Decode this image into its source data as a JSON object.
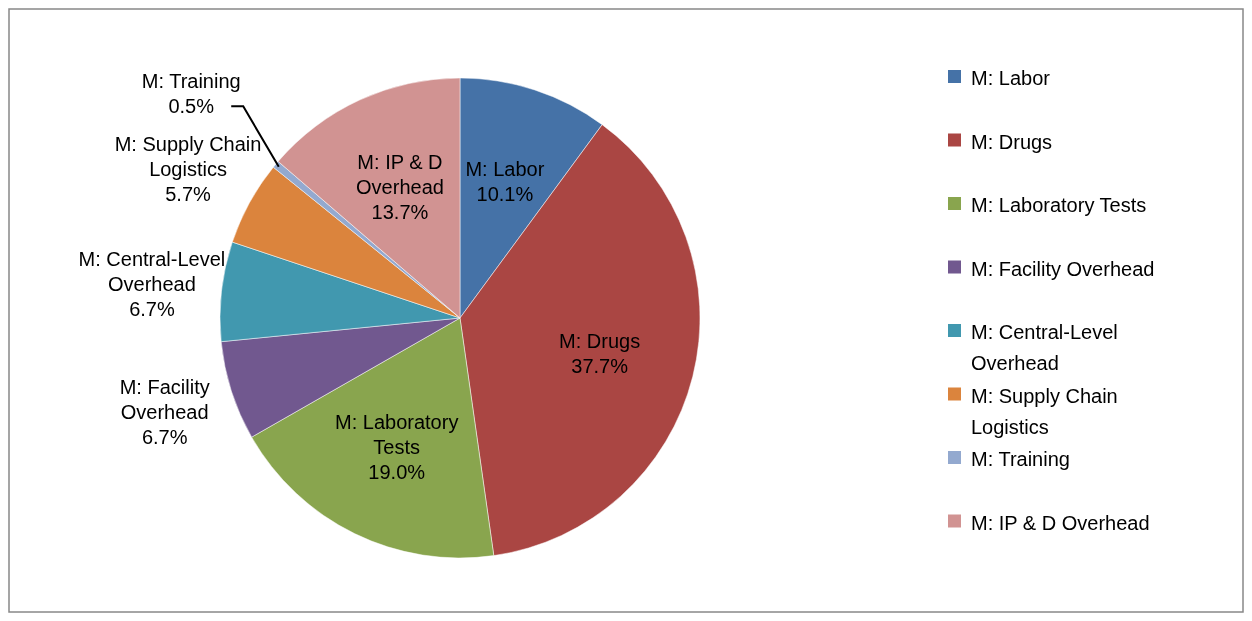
{
  "chart_data": {
    "type": "pie",
    "categories": [
      "M: Labor",
      "M: Drugs",
      "M: Laboratory Tests",
      "M: Facility Overhead",
      "M: Central-Level Overhead",
      "M: Supply Chain Logistics",
      "M: Training",
      "M: IP & D Overhead"
    ],
    "values": [
      10.1,
      37.7,
      19.0,
      6.7,
      6.7,
      5.7,
      0.5,
      13.7
    ],
    "value_labels": [
      "10.1%",
      "37.7%",
      "19.0%",
      "6.7%",
      "6.7%",
      "5.7%",
      "0.5%",
      "13.7%"
    ],
    "colors": [
      "#4572a7",
      "#aa4643",
      "#89a54e",
      "#71588f",
      "#4198af",
      "#db843d",
      "#93a9cf",
      "#d19392"
    ],
    "legend": "right"
  }
}
